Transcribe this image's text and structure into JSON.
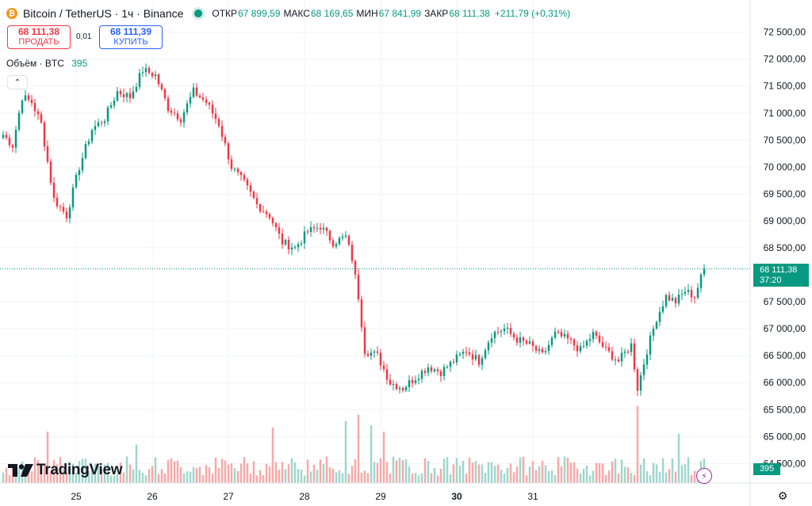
{
  "header": {
    "symbol": "Bitcoin / TetherUS",
    "interval": "1ч",
    "exchange": "Binance",
    "open_label": "ОТКР",
    "open": "67 899,59",
    "high_label": "МАКС",
    "high": "68 169,65",
    "low_label": "МИН",
    "low": "67 841,99",
    "close_label": "ЗАКР",
    "close": "68 111,38",
    "change": "+211,79 (+0,31%)",
    "coin_glyph": "₿"
  },
  "trade": {
    "sell_price": "68 111,38",
    "sell_label": "ПРОДАТЬ",
    "spread": "0,01",
    "buy_price": "68 111,39",
    "buy_label": "КУПИТЬ"
  },
  "volume_legend": {
    "label": "Объём · BTC",
    "value": "395"
  },
  "last_price": {
    "price": "68 111,38",
    "countdown": "37:20"
  },
  "volume_tag": "395",
  "brand": "TradingView",
  "colors": {
    "up": "#089981",
    "down": "#f23645",
    "vol_up": "#9fd6cd",
    "vol_down": "#f7a9a7"
  },
  "icons": {
    "collapse": "chevron-up-icon",
    "lightning": "lightning-icon",
    "settings": "gear-icon"
  },
  "chart_data": {
    "type": "candlestick",
    "y_axis_labels": [
      "72 500,00",
      "72 000,00",
      "71 500,00",
      "71 000,00",
      "70 500,00",
      "70 000,00",
      "69 500,00",
      "69 000,00",
      "68 500,00",
      "67 500,00",
      "67 000,00",
      "66 500,00",
      "66 000,00",
      "65 500,00",
      "65 000,00",
      "64 500,00"
    ],
    "y_axis_values": [
      72500,
      72000,
      71500,
      71000,
      70500,
      70000,
      69500,
      69000,
      68500,
      67500,
      67000,
      66500,
      66000,
      65500,
      65000,
      64500
    ],
    "x_axis_labels": [
      "25",
      "26",
      "27",
      "28",
      "29",
      "30",
      "31"
    ],
    "ylim": [
      64300,
      72700
    ],
    "last_price": 68111.38,
    "anchors": [
      {
        "i": 0,
        "c": 70600
      },
      {
        "i": 3,
        "c": 70400
      },
      {
        "i": 6,
        "c": 71300
      },
      {
        "i": 9,
        "c": 71200
      },
      {
        "i": 12,
        "c": 70800
      },
      {
        "i": 16,
        "c": 69400
      },
      {
        "i": 20,
        "c": 69100
      },
      {
        "i": 24,
        "c": 70000
      },
      {
        "i": 28,
        "c": 70700
      },
      {
        "i": 32,
        "c": 70900
      },
      {
        "i": 36,
        "c": 71400
      },
      {
        "i": 40,
        "c": 71300
      },
      {
        "i": 44,
        "c": 71800
      },
      {
        "i": 48,
        "c": 71700
      },
      {
        "i": 52,
        "c": 71100
      },
      {
        "i": 56,
        "c": 70900
      },
      {
        "i": 60,
        "c": 71400
      },
      {
        "i": 64,
        "c": 71200
      },
      {
        "i": 68,
        "c": 70800
      },
      {
        "i": 72,
        "c": 70000
      },
      {
        "i": 76,
        "c": 69700
      },
      {
        "i": 80,
        "c": 69300
      },
      {
        "i": 84,
        "c": 69100
      },
      {
        "i": 88,
        "c": 68600
      },
      {
        "i": 92,
        "c": 68500
      },
      {
        "i": 96,
        "c": 68800
      },
      {
        "i": 100,
        "c": 68900
      },
      {
        "i": 104,
        "c": 68600
      },
      {
        "i": 108,
        "c": 68700
      },
      {
        "i": 110,
        "c": 68300
      },
      {
        "i": 112,
        "c": 67600
      },
      {
        "i": 114,
        "c": 66600
      },
      {
        "i": 118,
        "c": 66500
      },
      {
        "i": 122,
        "c": 66000
      },
      {
        "i": 126,
        "c": 65900
      },
      {
        "i": 130,
        "c": 66100
      },
      {
        "i": 134,
        "c": 66300
      },
      {
        "i": 138,
        "c": 66200
      },
      {
        "i": 142,
        "c": 66400
      },
      {
        "i": 146,
        "c": 66600
      },
      {
        "i": 150,
        "c": 66400
      },
      {
        "i": 154,
        "c": 66900
      },
      {
        "i": 158,
        "c": 67000
      },
      {
        "i": 162,
        "c": 66800
      },
      {
        "i": 166,
        "c": 66700
      },
      {
        "i": 170,
        "c": 66500
      },
      {
        "i": 174,
        "c": 66900
      },
      {
        "i": 178,
        "c": 66800
      },
      {
        "i": 182,
        "c": 66600
      },
      {
        "i": 186,
        "c": 66900
      },
      {
        "i": 190,
        "c": 66600
      },
      {
        "i": 194,
        "c": 66400
      },
      {
        "i": 198,
        "c": 66700
      },
      {
        "i": 200,
        "c": 65900
      },
      {
        "i": 203,
        "c": 66600
      },
      {
        "i": 206,
        "c": 67200
      },
      {
        "i": 209,
        "c": 67600
      },
      {
        "i": 212,
        "c": 67500
      },
      {
        "i": 215,
        "c": 67700
      },
      {
        "i": 218,
        "c": 67600
      },
      {
        "i": 221,
        "c": 68111
      }
    ],
    "candle_count": 222,
    "volume_peaks": [
      {
        "i": 14,
        "v": 2.4
      },
      {
        "i": 42,
        "v": 1.8
      },
      {
        "i": 85,
        "v": 2.6
      },
      {
        "i": 108,
        "v": 2.9
      },
      {
        "i": 112,
        "v": 3.2
      },
      {
        "i": 116,
        "v": 2.7
      },
      {
        "i": 120,
        "v": 2.4
      },
      {
        "i": 200,
        "v": 3.6
      },
      {
        "i": 213,
        "v": 2.3
      }
    ]
  }
}
